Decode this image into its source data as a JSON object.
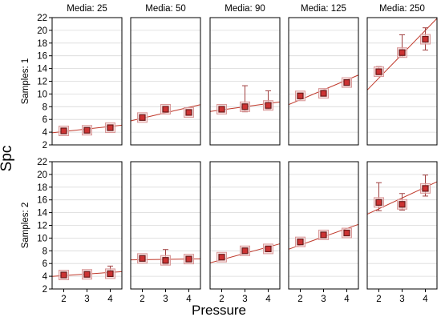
{
  "chart_data": {
    "type": "scatter",
    "description_free": true,
    "ylabel": "Spc",
    "xlabel": "Pressure",
    "x_ticks": [
      2,
      3,
      4
    ],
    "y_ticks": [
      2,
      4,
      6,
      8,
      10,
      12,
      14,
      16,
      18,
      20,
      22
    ],
    "xlim": [
      1.5,
      4.5
    ],
    "ylim": [
      2,
      22
    ],
    "grid": true,
    "column_prefix": "Media: ",
    "row_prefix": "Samples: ",
    "columns": [
      "25",
      "50",
      "90",
      "125",
      "250"
    ],
    "rows": [
      "1",
      "2"
    ],
    "colors": {
      "marker_fill": "#cc3333",
      "marker_edge": "#6b1a1a",
      "fit_line": "#c0392b",
      "error_bar": "#a04040",
      "grid": "#d9d9d9",
      "frame": "#000000"
    },
    "panels": [
      {
        "media": "25",
        "samples": "1",
        "x": [
          2,
          3,
          4
        ],
        "y": [
          4.2,
          4.3,
          4.7
        ],
        "y_err_low": [
          3.9,
          4.0,
          4.4
        ],
        "y_err_high": [
          4.5,
          4.6,
          5.0
        ],
        "fit": [
          4.1,
          4.9
        ]
      },
      {
        "media": "50",
        "samples": "1",
        "x": [
          2,
          3,
          4
        ],
        "y": [
          6.3,
          7.6,
          7.1
        ],
        "y_err_low": [
          6.0,
          7.3,
          6.8
        ],
        "y_err_high": [
          6.6,
          7.9,
          7.4
        ],
        "fit": [
          6.2,
          7.9
        ]
      },
      {
        "media": "90",
        "samples": "1",
        "x": [
          2,
          3,
          4
        ],
        "y": [
          7.6,
          8.0,
          8.2
        ],
        "y_err_low": [
          7.3,
          7.2,
          7.6
        ],
        "y_err_high": [
          7.9,
          11.3,
          10.5
        ],
        "fit": [
          7.5,
          8.5
        ]
      },
      {
        "media": "125",
        "samples": "1",
        "x": [
          2,
          3,
          4
        ],
        "y": [
          9.7,
          10.1,
          11.8
        ],
        "y_err_low": [
          9.4,
          9.9,
          11.5
        ],
        "y_err_high": [
          10.0,
          10.4,
          12.1
        ],
        "fit": [
          9.1,
          12.2
        ]
      },
      {
        "media": "250",
        "samples": "1",
        "x": [
          2,
          3,
          4
        ],
        "y": [
          13.5,
          16.5,
          18.6
        ],
        "y_err_low": [
          13.0,
          15.8,
          16.9
        ],
        "y_err_high": [
          14.3,
          19.3,
          20.4
        ],
        "fit": [
          12.5,
          20.0
        ]
      },
      {
        "media": "25",
        "samples": "2",
        "x": [
          2,
          3,
          4
        ],
        "y": [
          4.2,
          4.3,
          4.4
        ],
        "y_err_low": [
          4.0,
          4.1,
          4.0
        ],
        "y_err_high": [
          4.4,
          4.5,
          5.6
        ],
        "fit": [
          4.1,
          4.6
        ]
      },
      {
        "media": "50",
        "samples": "2",
        "x": [
          2,
          3,
          4
        ],
        "y": [
          6.8,
          6.5,
          6.7
        ],
        "y_err_low": [
          6.5,
          5.9,
          6.4
        ],
        "y_err_high": [
          7.1,
          8.2,
          7.0
        ],
        "fit": [
          6.6,
          6.7
        ]
      },
      {
        "media": "90",
        "samples": "2",
        "x": [
          2,
          3,
          4
        ],
        "y": [
          7.0,
          8.0,
          8.3
        ],
        "y_err_low": [
          6.7,
          7.7,
          8.0
        ],
        "y_err_high": [
          7.3,
          8.3,
          8.6
        ],
        "fit": [
          6.6,
          8.6
        ]
      },
      {
        "media": "125",
        "samples": "2",
        "x": [
          2,
          3,
          4
        ],
        "y": [
          9.4,
          10.5,
          10.8
        ],
        "y_err_low": [
          9.1,
          10.2,
          10.5
        ],
        "y_err_high": [
          9.7,
          10.8,
          11.1
        ],
        "fit": [
          8.9,
          11.5
        ]
      },
      {
        "media": "250",
        "samples": "2",
        "x": [
          2,
          3,
          4
        ],
        "y": [
          15.6,
          15.3,
          17.8
        ],
        "y_err_low": [
          14.3,
          14.4,
          16.6
        ],
        "y_err_high": [
          18.7,
          17.0,
          19.9
        ],
        "fit": [
          14.6,
          18.0
        ]
      }
    ]
  }
}
